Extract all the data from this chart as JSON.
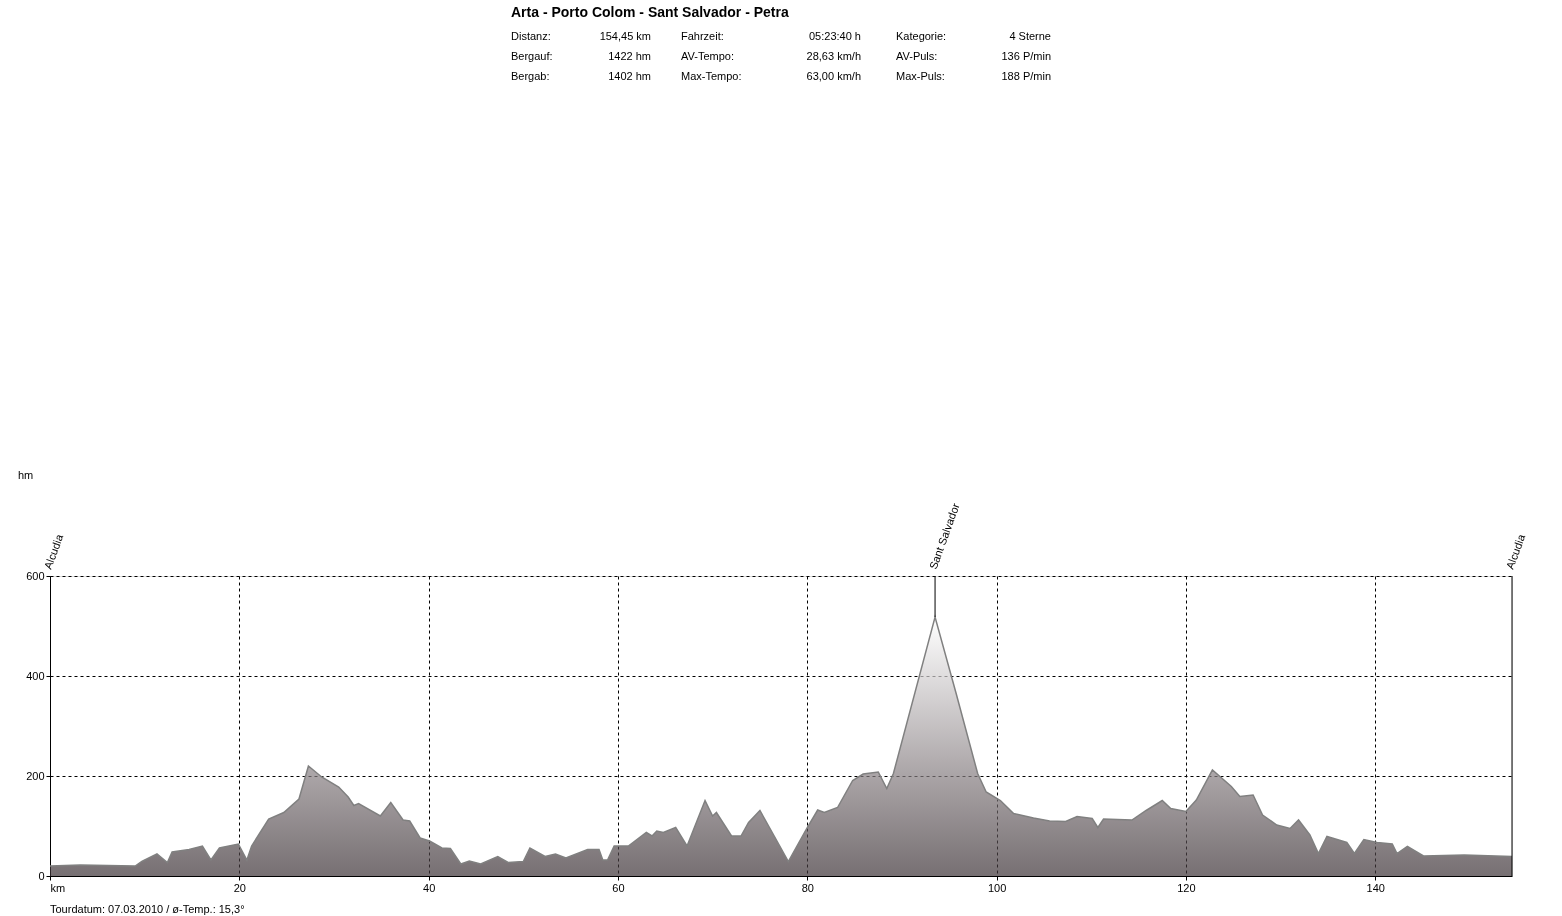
{
  "chart_data": {
    "type": "area",
    "title": "Arta - Porto Colom - Sant Salvador - Petra",
    "x": [
      0,
      3.2,
      9,
      9.7,
      11.3,
      12.4,
      12.9,
      14.7,
      16.1,
      17,
      17.9,
      19.9,
      20.8,
      21.3,
      23.1,
      24.7,
      26.3,
      27.3,
      28.7,
      30.5,
      31.5,
      32.1,
      32.6,
      34.9,
      36,
      37.3,
      38,
      39.1,
      40.1,
      41.4,
      42.3,
      43.4,
      44.3,
      45.5,
      47.3,
      48.4,
      50,
      50.7,
      52.3,
      53.4,
      54.5,
      56.8,
      58,
      58.4,
      58.9,
      59.6,
      61.1,
      63,
      63.6,
      64.1,
      64.8,
      66.1,
      67.3,
      69.2,
      70,
      70.4,
      72,
      73,
      73.8,
      75,
      76.8,
      78,
      80,
      81.1,
      81.8,
      83.2,
      84.8,
      85.9,
      87.5,
      88.4,
      89.1,
      93.5,
      95.7,
      98,
      98.9,
      100.4,
      101.8,
      103.9,
      105.6,
      107.3,
      108.5,
      110.1,
      110.7,
      111.3,
      114.3,
      115.8,
      117.5,
      118.4,
      120,
      121.1,
      122.8,
      124.8,
      125.7,
      127.1,
      128.1,
      129.6,
      131,
      131.9,
      133.1,
      134,
      134.9,
      137,
      137.8,
      138.8,
      140.2,
      141.8,
      142.3,
      143.4,
      145.1,
      149.4,
      154.45
    ],
    "series": [
      {
        "color": "#3c3236",
        "values": [
          20,
          22,
          20,
          29,
          44,
          27,
          48,
          53,
          60,
          32,
          56,
          64,
          32,
          60,
          114,
          127,
          154,
          220,
          198,
          178,
          158,
          141,
          145,
          120,
          147,
          112,
          110,
          76,
          70,
          56,
          55,
          24,
          30,
          24,
          39,
          27,
          29,
          56,
          39,
          44,
          36,
          53,
          53,
          32,
          32,
          60,
          60,
          87,
          80,
          90,
          87,
          97,
          60,
          151,
          120,
          127,
          80,
          80,
          107,
          131,
          70,
          29,
          97,
          132,
          127,
          137,
          191,
          204,
          208,
          175,
          205,
          518,
          367,
          205,
          168,
          151,
          125,
          116,
          110,
          109,
          119,
          115,
          97,
          114,
          112,
          131,
          151,
          135,
          129,
          152,
          212,
          179,
          159,
          162,
          122,
          102,
          95,
          112,
          82,
          45,
          79,
          67,
          45,
          73,
          67,
          64,
          45,
          59,
          40,
          42,
          39
        ]
      }
    ],
    "xlim": [
      0,
      154.45
    ],
    "xticks": [
      {
        "value": 0,
        "label": "km"
      },
      20,
      40,
      60,
      80,
      100,
      120,
      140
    ],
    "ylim": [
      0,
      600
    ],
    "yticks": [
      0,
      200,
      400,
      600
    ],
    "grid": true,
    "annotations": [
      "Distanz:",
      "154,45 km",
      "Fahrzeit:",
      "05:23:40 h",
      "Kategorie:",
      "4 Sterne",
      "Bergauf:",
      "1422 hm",
      "AV-Tempo:",
      "28,63 km/h",
      "AV-Puls:",
      "136 P/min",
      "Bergab:",
      "1402 hm",
      "Max-Tempo:",
      "63,00 km/h",
      "Max-Puls:",
      "188 P/min",
      "hm",
      "Alcudia",
      {
        "text": "Sant Salvador",
        "x": 93.5,
        "y": 518
      },
      "Alcudia",
      "Tourdatum: 07.03.2010  /  ø-Temp.: 15,3°"
    ]
  }
}
